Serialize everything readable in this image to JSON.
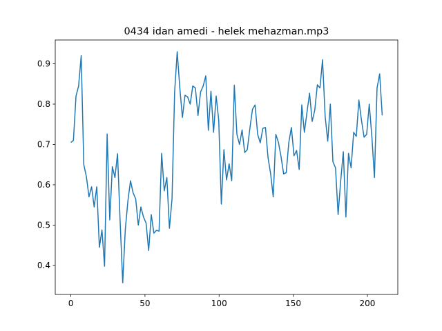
{
  "chart_data": {
    "type": "line",
    "title": "0434 idan amedi - helek mehazman.mp3",
    "x": [
      0,
      1.75,
      3.5,
      5.25,
      7,
      8.75,
      10.5,
      12.25,
      14,
      15.75,
      17.5,
      19.25,
      21,
      22.75,
      24.5,
      26.25,
      28,
      29.75,
      31.5,
      33.25,
      35,
      36.75,
      38.5,
      40.25,
      42,
      43.75,
      45.5,
      47.25,
      49,
      50.75,
      52.5,
      54.25,
      56,
      57.75,
      59.5,
      61.25,
      63,
      64.75,
      66.5,
      68.25,
      70,
      71.75,
      73.5,
      75.25,
      77,
      78.75,
      80.5,
      82.25,
      84,
      85.75,
      87.5,
      89.25,
      91,
      92.75,
      94.5,
      96.25,
      98,
      99.75,
      101.5,
      103.25,
      105,
      106.75,
      108.5,
      110.25,
      112,
      113.75,
      115.5,
      117.25,
      119,
      120.75,
      122.5,
      124.25,
      126,
      127.75,
      129.5,
      131.25,
      133,
      134.75,
      136.5,
      138.25,
      140,
      141.75,
      143.5,
      145.25,
      147,
      148.75,
      150.5,
      152.25,
      154,
      155.75,
      157.5,
      159.25,
      161,
      162.75,
      164.5,
      166.25,
      168,
      169.75,
      171.5,
      173.25,
      175,
      176.75,
      178.5,
      180.25,
      182,
      183.75,
      185.5,
      187.25,
      189,
      190.75,
      192.5,
      194.25,
      196,
      197.75,
      199.5,
      201.25,
      203,
      204.75,
      206.5,
      208.25,
      210
    ],
    "series": [
      {
        "color": "#1f77b4",
        "values": [
          0.705,
          0.71,
          0.82,
          0.845,
          0.92,
          0.65,
          0.62,
          0.57,
          0.595,
          0.545,
          0.595,
          0.445,
          0.488,
          0.398,
          0.726,
          0.513,
          0.645,
          0.618,
          0.677,
          0.51,
          0.357,
          0.49,
          0.56,
          0.61,
          0.58,
          0.565,
          0.5,
          0.545,
          0.52,
          0.505,
          0.437,
          0.526,
          0.48,
          0.487,
          0.485,
          0.678,
          0.585,
          0.618,
          0.492,
          0.565,
          0.83,
          0.93,
          0.84,
          0.767,
          0.822,
          0.818,
          0.8,
          0.845,
          0.84,
          0.772,
          0.83,
          0.845,
          0.87,
          0.735,
          0.832,
          0.73,
          0.82,
          0.76,
          0.552,
          0.687,
          0.612,
          0.652,
          0.61,
          0.847,
          0.725,
          0.7,
          0.736,
          0.68,
          0.687,
          0.74,
          0.787,
          0.798,
          0.725,
          0.704,
          0.74,
          0.742,
          0.667,
          0.627,
          0.57,
          0.725,
          0.705,
          0.67,
          0.627,
          0.63,
          0.705,
          0.742,
          0.672,
          0.685,
          0.638,
          0.798,
          0.73,
          0.78,
          0.827,
          0.757,
          0.785,
          0.848,
          0.84,
          0.91,
          0.77,
          0.708,
          0.8,
          0.657,
          0.642,
          0.526,
          0.61,
          0.682,
          0.52,
          0.678,
          0.642,
          0.73,
          0.72,
          0.81,
          0.76,
          0.718,
          0.725,
          0.8,
          0.72,
          0.618,
          0.84,
          0.875,
          0.772
        ]
      }
    ],
    "xlim": [
      -10.5,
      220.5
    ],
    "xticks": [
      0,
      50,
      100,
      150,
      200
    ],
    "ylim": [
      0.328,
      0.959
    ],
    "yticks": [
      0.4,
      0.5,
      0.6,
      0.7,
      0.8,
      0.9
    ]
  }
}
